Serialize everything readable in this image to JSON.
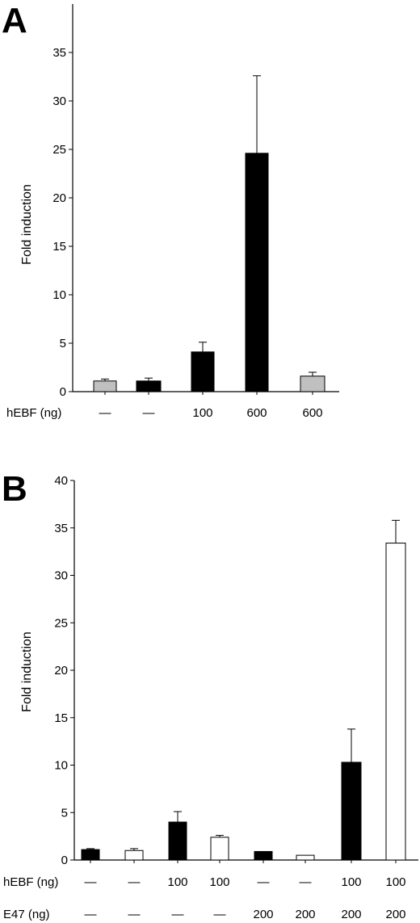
{
  "chart_data": [
    {
      "type": "bar",
      "panel": "A",
      "ylabel": "Fold induction",
      "ylim": [
        0,
        40
      ],
      "yticks": [
        0,
        5,
        10,
        15,
        20,
        25,
        30,
        35
      ],
      "tick_labels": [
        "0",
        "5",
        "10",
        "15",
        "20",
        "25",
        "30",
        "35"
      ],
      "grid": false,
      "condition_rows": [
        {
          "label": "hEBF (ng)",
          "values": [
            "—",
            "—",
            "100",
            "600",
            "600"
          ]
        }
      ],
      "bars": [
        {
          "value": 1.1,
          "error": 0.2,
          "fill": "#c0c0c0"
        },
        {
          "value": 1.1,
          "error": 0.3,
          "fill": "#000000"
        },
        {
          "value": 4.1,
          "error": 1.0,
          "fill": "#000000"
        },
        {
          "value": 24.6,
          "error": 8.0,
          "fill": "#000000"
        },
        {
          "value": 1.6,
          "error": 0.4,
          "fill": "#c0c0c0"
        }
      ]
    },
    {
      "type": "bar",
      "panel": "B",
      "ylabel": "Fold induction",
      "ylim": [
        0,
        40
      ],
      "yticks": [
        0,
        5,
        10,
        15,
        20,
        25,
        30,
        35,
        40
      ],
      "tick_labels": [
        "0",
        "5",
        "10",
        "15",
        "20",
        "25",
        "30",
        "35",
        "40"
      ],
      "grid": false,
      "condition_rows": [
        {
          "label": "hEBF (ng)",
          "values": [
            "—",
            "—",
            "100",
            "100",
            "—",
            "—",
            "100",
            "100"
          ]
        },
        {
          "label": "E47 (ng)",
          "values": [
            "—",
            "—",
            "—",
            "—",
            "200",
            "200",
            "200",
            "200"
          ]
        }
      ],
      "bars": [
        {
          "value": 1.1,
          "error": 0.1,
          "fill": "#000000"
        },
        {
          "value": 1.0,
          "error": 0.2,
          "fill": "#ffffff"
        },
        {
          "value": 4.0,
          "error": 1.1,
          "fill": "#000000"
        },
        {
          "value": 2.4,
          "error": 0.2,
          "fill": "#ffffff"
        },
        {
          "value": 0.9,
          "error": 0.0,
          "fill": "#000000"
        },
        {
          "value": 0.5,
          "error": 0.0,
          "fill": "#ffffff"
        },
        {
          "value": 10.3,
          "error": 3.5,
          "fill": "#000000"
        },
        {
          "value": 33.4,
          "error": 2.4,
          "fill": "#ffffff"
        }
      ]
    }
  ],
  "panels": {
    "A": {
      "letter": "A"
    },
    "B": {
      "letter": "B"
    }
  }
}
